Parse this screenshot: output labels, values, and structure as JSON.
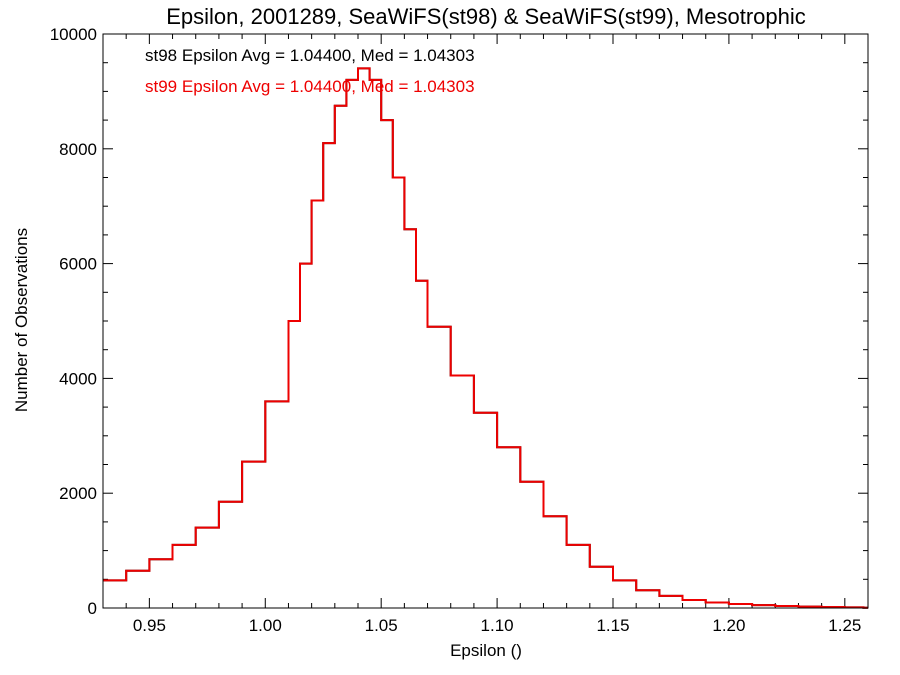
{
  "chart_data": {
    "type": "line",
    "title": "Epsilon, 2001289, SeaWiFS(st98) & SeaWiFS(st99), Mesotrophic",
    "xlabel": "Epsilon ()",
    "ylabel": "Number of Observations",
    "xlim": [
      0.93,
      1.26
    ],
    "ylim": [
      0,
      10000
    ],
    "x_ticks": [
      "0.95",
      "1.00",
      "1.05",
      "1.10",
      "1.15",
      "1.20",
      "1.25"
    ],
    "y_ticks": [
      "0",
      "2000",
      "4000",
      "6000",
      "8000",
      "10000"
    ],
    "grid": false,
    "legend": {
      "placement": "top-left",
      "entries": [
        {
          "text": "st98 Epsilon Avg = 1.04400, Med = 1.04303",
          "color": "#000000"
        },
        {
          "text": "st99 Epsilon Avg = 1.04400, Med = 1.04303",
          "color": "#ee0000"
        }
      ]
    },
    "series": [
      {
        "name": "st98",
        "color": "#000000",
        "x": [
          0.93,
          0.94,
          0.95,
          0.96,
          0.97,
          0.98,
          0.99,
          1.0,
          1.01,
          1.015,
          1.02,
          1.025,
          1.03,
          1.035,
          1.04,
          1.045,
          1.05,
          1.055,
          1.06,
          1.065,
          1.07,
          1.08,
          1.09,
          1.1,
          1.11,
          1.12,
          1.13,
          1.14,
          1.15,
          1.16,
          1.17,
          1.18,
          1.19,
          1.2,
          1.21,
          1.22,
          1.23,
          1.24,
          1.25,
          1.258
        ],
        "y": [
          480,
          650,
          850,
          1100,
          1400,
          1850,
          2550,
          3600,
          5000,
          6000,
          7100,
          8100,
          8750,
          9200,
          9400,
          9200,
          8500,
          7500,
          6600,
          5700,
          4900,
          4050,
          3400,
          2800,
          2200,
          1600,
          1100,
          720,
          480,
          310,
          210,
          140,
          95,
          70,
          50,
          35,
          25,
          18,
          10,
          5
        ]
      },
      {
        "name": "st99",
        "color": "#ee0000",
        "x": [
          0.93,
          0.94,
          0.95,
          0.96,
          0.97,
          0.98,
          0.99,
          1.0,
          1.01,
          1.015,
          1.02,
          1.025,
          1.03,
          1.035,
          1.04,
          1.045,
          1.05,
          1.055,
          1.06,
          1.065,
          1.07,
          1.08,
          1.09,
          1.1,
          1.11,
          1.12,
          1.13,
          1.14,
          1.15,
          1.16,
          1.17,
          1.18,
          1.19,
          1.2,
          1.21,
          1.22,
          1.23,
          1.24,
          1.25,
          1.258
        ],
        "y": [
          480,
          650,
          850,
          1100,
          1400,
          1850,
          2550,
          3600,
          5000,
          6000,
          7100,
          8100,
          8750,
          9200,
          9400,
          9200,
          8500,
          7500,
          6600,
          5700,
          4900,
          4050,
          3400,
          2800,
          2200,
          1600,
          1100,
          720,
          480,
          310,
          210,
          140,
          95,
          70,
          50,
          35,
          25,
          18,
          10,
          5
        ]
      }
    ]
  }
}
